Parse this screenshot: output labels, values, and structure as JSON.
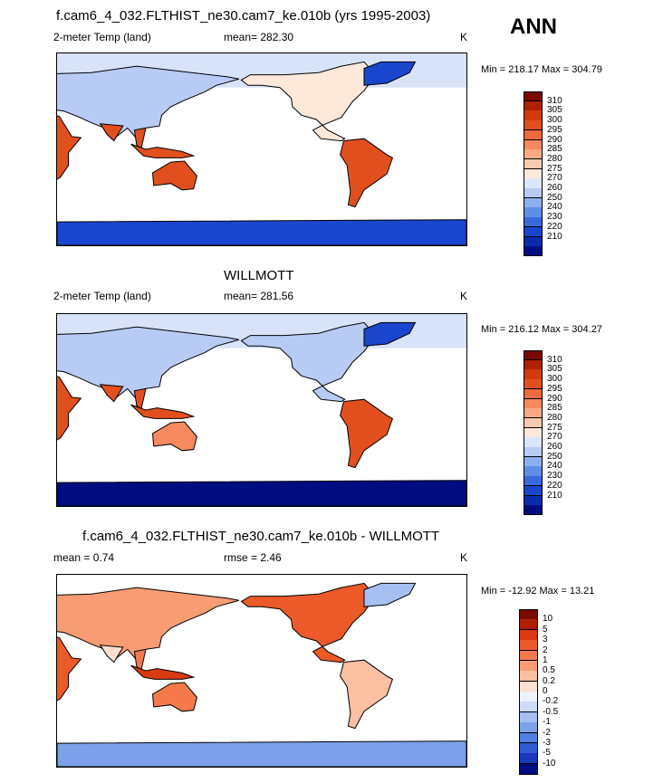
{
  "ann_label": "ANN",
  "panels": [
    {
      "title": "f.cam6_4_032.FLTHIST_ne30.cam7_ke.010b (yrs 1995-2003)",
      "left_label": "2-meter Temp (land)",
      "center_label": "mean= 282.30",
      "units": "K",
      "minmax": "Min = 218.17 Max = 304.79",
      "colorbar": {
        "labels": [
          "310",
          "305",
          "300",
          "295",
          "290",
          "285",
          "280",
          "275",
          "270",
          "260",
          "250",
          "240",
          "230",
          "220",
          "210"
        ],
        "colors": [
          "#7a0a00",
          "#b02000",
          "#d23a0c",
          "#e24f1f",
          "#ef6a3c",
          "#f68a5e",
          "#f9aa85",
          "#fbcaae",
          "#fde8da",
          "#dbe6fb",
          "#b7cbf5",
          "#8db0f0",
          "#5f8ee8",
          "#3769df",
          "#1a45cd",
          "#0a2bb0",
          "#000d80"
        ]
      },
      "map_kind": "model"
    },
    {
      "title": "WILLMOTT",
      "left_label": "2-meter Temp (land)",
      "center_label": "mean= 281.56",
      "units": "K",
      "minmax": "Min = 216.12 Max = 304.27",
      "colorbar": {
        "labels": [
          "310",
          "305",
          "300",
          "295",
          "290",
          "285",
          "280",
          "275",
          "270",
          "260",
          "250",
          "240",
          "230",
          "220",
          "210"
        ],
        "colors": [
          "#7a0a00",
          "#b02000",
          "#d23a0c",
          "#e24f1f",
          "#ef6a3c",
          "#f68a5e",
          "#f9aa85",
          "#fbcaae",
          "#fde8da",
          "#dbe6fb",
          "#b7cbf5",
          "#8db0f0",
          "#5f8ee8",
          "#3769df",
          "#1a45cd",
          "#0a2bb0",
          "#000d80"
        ]
      },
      "map_kind": "obs"
    },
    {
      "title": "f.cam6_4_032.FLTHIST_ne30.cam7_ke.010b - WILLMOTT",
      "left_label": "mean =   0.74",
      "center_label": "rmse =   2.46",
      "units": "K",
      "minmax": "Min = -12.92 Max =  13.21",
      "colorbar": {
        "labels": [
          "10",
          "5",
          "3",
          "2",
          "1",
          "0.5",
          "0.2",
          "0",
          "-0.2",
          "-0.5",
          "-1",
          "-2",
          "-3",
          "-5",
          "-10"
        ],
        "colors": [
          "#7a0a00",
          "#b02000",
          "#d93a10",
          "#ec5a2a",
          "#f47a4c",
          "#f89c74",
          "#fbbfa2",
          "#fde0d0",
          "#eef2fd",
          "#cddcf8",
          "#a6c0f2",
          "#7ca0ea",
          "#5180e0",
          "#2f5cd2",
          "#1838b8",
          "#000d80"
        ]
      },
      "map_kind": "diff"
    }
  ],
  "chart_data": {
    "type": "heatmap",
    "maps": [
      {
        "title": "f.cam6_4_032.FLTHIST_ne30.cam7_ke.010b (yrs 1995-2003)",
        "variable": "2-meter Temp (land)",
        "units": "K",
        "mean": 282.3,
        "min": 218.17,
        "max": 304.79,
        "levels": [
          210,
          220,
          230,
          240,
          250,
          260,
          270,
          275,
          280,
          285,
          290,
          295,
          300,
          305,
          310
        ]
      },
      {
        "title": "WILLMOTT",
        "variable": "2-meter Temp (land)",
        "units": "K",
        "mean": 281.56,
        "min": 216.12,
        "max": 304.27,
        "levels": [
          210,
          220,
          230,
          240,
          250,
          260,
          270,
          275,
          280,
          285,
          290,
          295,
          300,
          305,
          310
        ]
      },
      {
        "title": "f.cam6_4_032.FLTHIST_ne30.cam7_ke.010b - WILLMOTT",
        "units": "K",
        "mean": 0.74,
        "rmse": 2.46,
        "min": -12.92,
        "max": 13.21,
        "levels": [
          -10,
          -5,
          -3,
          -2,
          -1,
          -0.5,
          -0.2,
          0,
          0.2,
          0.5,
          1,
          2,
          3,
          5,
          10
        ]
      }
    ]
  }
}
